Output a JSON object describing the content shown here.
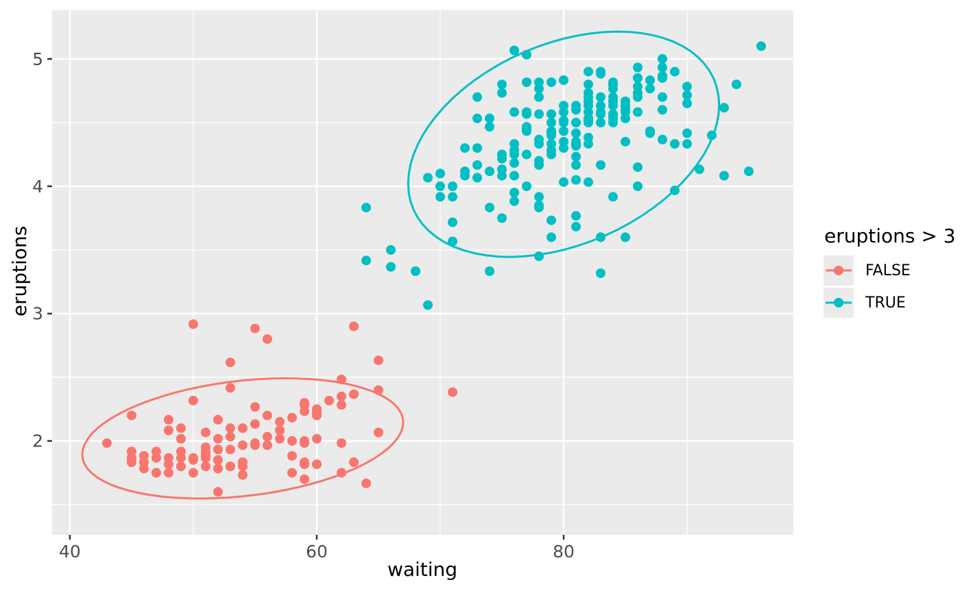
{
  "legend": {
    "title": "eruptions > 3",
    "items": [
      {
        "label": "FALSE",
        "color": "#F8766D"
      },
      {
        "label": "TRUE",
        "color": "#00BFC4"
      }
    ]
  },
  "chart_data": {
    "type": "scatter",
    "title": "",
    "xlabel": "waiting",
    "ylabel": "eruptions",
    "x_ticks": [
      40,
      60,
      80
    ],
    "x_tick_labels": [
      "40",
      "60",
      "80"
    ],
    "x_minor": [
      50,
      70,
      90
    ],
    "y_ticks": [
      2,
      3,
      4,
      5
    ],
    "y_tick_labels": [
      "2",
      "3",
      "4",
      "5"
    ],
    "y_minor": [
      1.5,
      2.5,
      3.5,
      4.5
    ],
    "x_domain": [
      38.56,
      98.61
    ],
    "y_domain": [
      1.263,
      5.382
    ],
    "grid": true,
    "legend_position": "right",
    "panel_bg": "#EBEBEB",
    "grid_color": "#FFFFFF",
    "tick_color": "#333333",
    "tick_label_color": "#4D4D4D",
    "series": [
      {
        "name": "FALSE",
        "color": "#F8766D",
        "points": [
          [
            54,
            1.8
          ],
          [
            62,
            2.283
          ],
          [
            55,
            2.883
          ],
          [
            51,
            1.95
          ],
          [
            54,
            1.833
          ],
          [
            47,
            1.75
          ],
          [
            52,
            2.167
          ],
          [
            62,
            1.75
          ],
          [
            52,
            1.6
          ],
          [
            51,
            1.8
          ],
          [
            47,
            1.75
          ],
          [
            55,
            1.967
          ],
          [
            52,
            2.017
          ],
          [
            48,
            1.867
          ],
          [
            59,
            1.833
          ],
          [
            58,
            1.883
          ],
          [
            58,
            1.75
          ],
          [
            53,
            2.1
          ],
          [
            59,
            2.0
          ],
          [
            54,
            1.833
          ],
          [
            54,
            1.733
          ],
          [
            64,
            1.667
          ],
          [
            59,
            2.233
          ],
          [
            48,
            1.75
          ],
          [
            60,
            1.817
          ],
          [
            65,
            2.067
          ],
          [
            56,
            1.967
          ],
          [
            62,
            1.983
          ],
          [
            60,
            2.017
          ],
          [
            65,
            2.633
          ],
          [
            48,
            2.167
          ],
          [
            60,
            2.2
          ],
          [
            50,
            1.867
          ],
          [
            63,
            1.833
          ],
          [
            51,
            1.867
          ],
          [
            62,
            2.483
          ],
          [
            49,
            2.1
          ],
          [
            47,
            1.867
          ],
          [
            52,
            1.783
          ],
          [
            59,
            2.3
          ],
          [
            59,
            1.7
          ],
          [
            50,
            2.317
          ],
          [
            59,
            1.817
          ],
          [
            53,
            2.617
          ],
          [
            56,
            1.967
          ],
          [
            45,
            1.917
          ],
          [
            55,
            2.267
          ],
          [
            45,
            1.867
          ],
          [
            56,
            2.8
          ],
          [
            46,
            1.833
          ],
          [
            51,
            1.883
          ],
          [
            53,
            2.033
          ],
          [
            60,
            2.233
          ],
          [
            59,
            1.983
          ],
          [
            49,
            2.017
          ],
          [
            53,
            1.8
          ],
          [
            65,
            2.4
          ],
          [
            53,
            1.8
          ],
          [
            45,
            2.2
          ],
          [
            58,
            2.0
          ],
          [
            63,
            2.367
          ],
          [
            52,
            1.933
          ],
          [
            49,
            1.917
          ],
          [
            57,
            2.083
          ],
          [
            50,
            2.917
          ],
          [
            45,
            1.833
          ],
          [
            51,
            1.917
          ],
          [
            71,
            2.383
          ],
          [
            63,
            2.9
          ],
          [
            43,
            1.983
          ],
          [
            48,
            2.083
          ],
          [
            50,
            1.85
          ],
          [
            57,
            2.15
          ],
          [
            55,
            1.983
          ],
          [
            60,
            2.25
          ],
          [
            49,
            1.867
          ],
          [
            54,
            2.1
          ],
          [
            46,
            1.783
          ],
          [
            53,
            2.417
          ],
          [
            53,
            1.933
          ],
          [
            56,
            2.033
          ],
          [
            49,
            1.8
          ],
          [
            61,
            2.317
          ],
          [
            47,
            1.917
          ],
          [
            58,
            2.183
          ],
          [
            52,
            1.85
          ],
          [
            51,
            2.067
          ],
          [
            50,
            1.75
          ],
          [
            59,
            2.283
          ],
          [
            54,
            1.967
          ],
          [
            55,
            2.133
          ],
          [
            46,
            1.883
          ],
          [
            62,
            2.35
          ],
          [
            48,
            1.817
          ],
          [
            57,
            2.017
          ],
          [
            51,
            1.9
          ],
          [
            56,
            2.2
          ]
        ]
      },
      {
        "name": "TRUE",
        "color": "#00BFC4",
        "points": [
          [
            79,
            3.6
          ],
          [
            74,
            3.333
          ],
          [
            85,
            4.533
          ],
          [
            88,
            4.7
          ],
          [
            85,
            3.6
          ],
          [
            85,
            4.35
          ],
          [
            84,
            3.917
          ],
          [
            78,
            4.2
          ],
          [
            83,
            4.7
          ],
          [
            84,
            4.8
          ],
          [
            79,
            4.25
          ],
          [
            78,
            3.45
          ],
          [
            69,
            3.067
          ],
          [
            74,
            4.533
          ],
          [
            83,
            3.6
          ],
          [
            76,
            4.083
          ],
          [
            78,
            3.85
          ],
          [
            79,
            4.433
          ],
          [
            73,
            4.3
          ],
          [
            77,
            4.467
          ],
          [
            66,
            3.367
          ],
          [
            80,
            4.033
          ],
          [
            74,
            3.833
          ],
          [
            80,
            4.833
          ],
          [
            90,
            4.783
          ],
          [
            80,
            4.35
          ],
          [
            84,
            4.567
          ],
          [
            73,
            4.533
          ],
          [
            83,
            3.317
          ],
          [
            64,
            3.833
          ],
          [
            82,
            4.633
          ],
          [
            75,
            4.8
          ],
          [
            90,
            4.716
          ],
          [
            80,
            4.833
          ],
          [
            83,
            4.883
          ],
          [
            71,
            3.717
          ],
          [
            77,
            4.567
          ],
          [
            81,
            4.317
          ],
          [
            84,
            4.5
          ],
          [
            82,
            4.8
          ],
          [
            92,
            4.4
          ],
          [
            78,
            4.167
          ],
          [
            78,
            4.7
          ],
          [
            73,
            4.7
          ],
          [
            82,
            4.033
          ],
          [
            79,
            4.5
          ],
          [
            71,
            4.0
          ],
          [
            76,
            5.067
          ],
          [
            78,
            4.567
          ],
          [
            76,
            3.883
          ],
          [
            83,
            3.6
          ],
          [
            75,
            4.133
          ],
          [
            82,
            4.333
          ],
          [
            70,
            4.1
          ],
          [
            73,
            4.067
          ],
          [
            88,
            4.933
          ],
          [
            76,
            3.95
          ],
          [
            80,
            4.517
          ],
          [
            86,
            4.0
          ],
          [
            90,
            4.333
          ],
          [
            78,
            4.817
          ],
          [
            72,
            4.3
          ],
          [
            84,
            4.667
          ],
          [
            75,
            3.75
          ],
          [
            82,
            4.9
          ],
          [
            88,
            4.367
          ],
          [
            83,
            4.5
          ],
          [
            81,
            4.05
          ],
          [
            84,
            4.7
          ],
          [
            86,
            4.85
          ],
          [
            81,
            3.683
          ],
          [
            75,
            4.733
          ],
          [
            89,
            4.9
          ],
          [
            79,
            4.417
          ],
          [
            81,
            4.633
          ],
          [
            85,
            4.6
          ],
          [
            87,
            4.417
          ],
          [
            69,
            4.067
          ],
          [
            77,
            4.25
          ],
          [
            88,
            4.6
          ],
          [
            81,
            3.767
          ],
          [
            82,
            4.5
          ],
          [
            90,
            4.65
          ],
          [
            83,
            4.167
          ],
          [
            89,
            4.333
          ],
          [
            82,
            4.383
          ],
          [
            86,
            4.933
          ],
          [
            79,
            3.733
          ],
          [
            81,
            4.233
          ],
          [
            82,
            4.533
          ],
          [
            77,
            4.817
          ],
          [
            76,
            4.333
          ],
          [
            80,
            4.633
          ],
          [
            96,
            5.1
          ],
          [
            77,
            5.033
          ],
          [
            77,
            4.0
          ],
          [
            81,
            4.6
          ],
          [
            71,
            3.567
          ],
          [
            70,
            4.0
          ],
          [
            81,
            4.5
          ],
          [
            93,
            4.083
          ],
          [
            89,
            3.967
          ],
          [
            86,
            4.15
          ],
          [
            78,
            3.833
          ],
          [
            66,
            3.5
          ],
          [
            76,
            4.583
          ],
          [
            88,
            5.0
          ],
          [
            93,
            4.617
          ],
          [
            77,
            4.583
          ],
          [
            68,
            3.333
          ],
          [
            81,
            4.167
          ],
          [
            81,
            4.333
          ],
          [
            73,
            4.167
          ],
          [
            85,
            4.583
          ],
          [
            88,
            4.867
          ],
          [
            80,
            4.583
          ],
          [
            78,
            4.767
          ],
          [
            83,
            4.9
          ],
          [
            79,
            4.333
          ],
          [
            72,
            4.083
          ],
          [
            86,
            4.7
          ],
          [
            80,
            4.433
          ],
          [
            85,
            4.667
          ],
          [
            82,
            4.517
          ],
          [
            87,
            4.767
          ],
          [
            77,
            4.433
          ],
          [
            70,
            3.917
          ],
          [
            83,
            4.583
          ],
          [
            75,
            4.25
          ],
          [
            87,
            4.433
          ],
          [
            84,
            4.817
          ],
          [
            80,
            4.3
          ],
          [
            82,
            4.667
          ],
          [
            84,
            4.533
          ],
          [
            79,
            4.817
          ],
          [
            78,
            4.333
          ],
          [
            85,
            4.633
          ],
          [
            72,
            4.117
          ],
          [
            82,
            4.7
          ],
          [
            80,
            4.5
          ],
          [
            86,
            4.783
          ],
          [
            81,
            4.417
          ],
          [
            94,
            4.8
          ],
          [
            83,
            4.567
          ],
          [
            76,
            4.25
          ],
          [
            85,
            4.667
          ],
          [
            81,
            4.35
          ],
          [
            87,
            4.833
          ],
          [
            77,
            4.45
          ],
          [
            78,
            3.917
          ],
          [
            84,
            4.767
          ],
          [
            75,
            4.217
          ],
          [
            86,
            4.583
          ],
          [
            82,
            4.733
          ],
          [
            79,
            4.4
          ],
          [
            88,
            4.85
          ],
          [
            76,
            4.283
          ],
          [
            82,
            4.583
          ],
          [
            84,
            4.633
          ],
          [
            91,
            4.133
          ],
          [
            78,
            4.367
          ],
          [
            81,
            4.5
          ],
          [
            71,
            3.917
          ],
          [
            95,
            4.117
          ],
          [
            74,
            4.117
          ],
          [
            83,
            4.633
          ],
          [
            90,
            4.417
          ],
          [
            74,
            4.467
          ],
          [
            75,
            4.083
          ],
          [
            79,
            4.567
          ],
          [
            64,
            3.417
          ],
          [
            86,
            4.733
          ],
          [
            79,
            4.283
          ],
          [
            76,
            4.183
          ],
          [
            84,
            4.55
          ]
        ]
      }
    ],
    "ellipses": [
      {
        "name": "FALSE",
        "color": "#F8766D",
        "cx": 54.0,
        "cy": 2.02,
        "a": 13.0,
        "b": 0.455,
        "angle": 0.0097
      },
      {
        "name": "TRUE",
        "color": "#00BFC4",
        "cx": 80.0,
        "cy": 4.33,
        "a": 12.6,
        "b": 0.829,
        "angle": 0.0246
      }
    ]
  }
}
